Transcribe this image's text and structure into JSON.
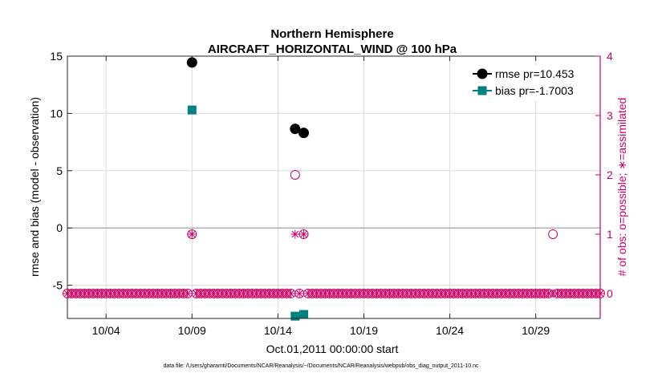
{
  "chart_data": {
    "type": "scatter",
    "title": "Northern Hemisphere",
    "subtitle": "AIRCRAFT_HORIZONTAL_WIND @ 100 hPa",
    "xlabel": "Oct.01,2011 00:00:00 start",
    "ylabel": "rmse and bias (model - observation)",
    "y2label": "# of obs: o=possible; ∗=assimilated",
    "footnote": "data file: /Users/gharamti/Documents/NCAR/Reanalysis/~/Documents/NCAR/Reanalysis/webpub/obs_diag_output_2011-10.nc",
    "xlim": [
      0.75,
      31.75
    ],
    "ylim": [
      -7.9,
      15
    ],
    "y2lim": [
      -0.42,
      4
    ],
    "x_ticks": [
      3,
      8,
      13,
      18,
      23,
      28
    ],
    "x_tick_labels": [
      "10/04",
      "10/09",
      "10/14",
      "10/19",
      "10/24",
      "10/29"
    ],
    "y_ticks": [
      -5,
      0,
      5,
      10,
      15
    ],
    "y_tick_labels": [
      "-5",
      "0",
      "5",
      "10",
      "15"
    ],
    "y2_ticks": [
      0,
      1,
      2,
      3,
      4
    ],
    "y2_tick_labels": [
      "0",
      "1",
      "2",
      "3",
      "4"
    ],
    "grid": true,
    "legend_position": "top-right",
    "colors": {
      "rmse": "#000000",
      "bias": "#008080",
      "obs": "#cc0066",
      "zero_line": "#b0b0b0",
      "grid": "#dcdcdc"
    },
    "series": [
      {
        "name": "rmse",
        "legend": "rmse pr=10.453",
        "marker": "circle",
        "x": [
          8.0,
          14.0,
          14.5
        ],
        "y": [
          14.45,
          8.65,
          8.3
        ]
      },
      {
        "name": "bias",
        "legend": "bias pr=-1.7003",
        "marker": "square",
        "x": [
          8.0,
          14.0,
          14.5
        ],
        "y": [
          10.3,
          -7.7,
          -7.55
        ]
      }
    ],
    "obs_step_days": 0.25,
    "obs_possible_nonzero": [
      {
        "x": 8.0,
        "count": 1
      },
      {
        "x": 14.0,
        "count": 2
      },
      {
        "x": 14.5,
        "count": 1
      },
      {
        "x": 29.0,
        "count": 1
      }
    ],
    "obs_assimilated_nonzero": [
      {
        "x": 8.0,
        "count": 1
      },
      {
        "x": 14.0,
        "count": 1
      },
      {
        "x": 14.5,
        "count": 1
      }
    ]
  }
}
